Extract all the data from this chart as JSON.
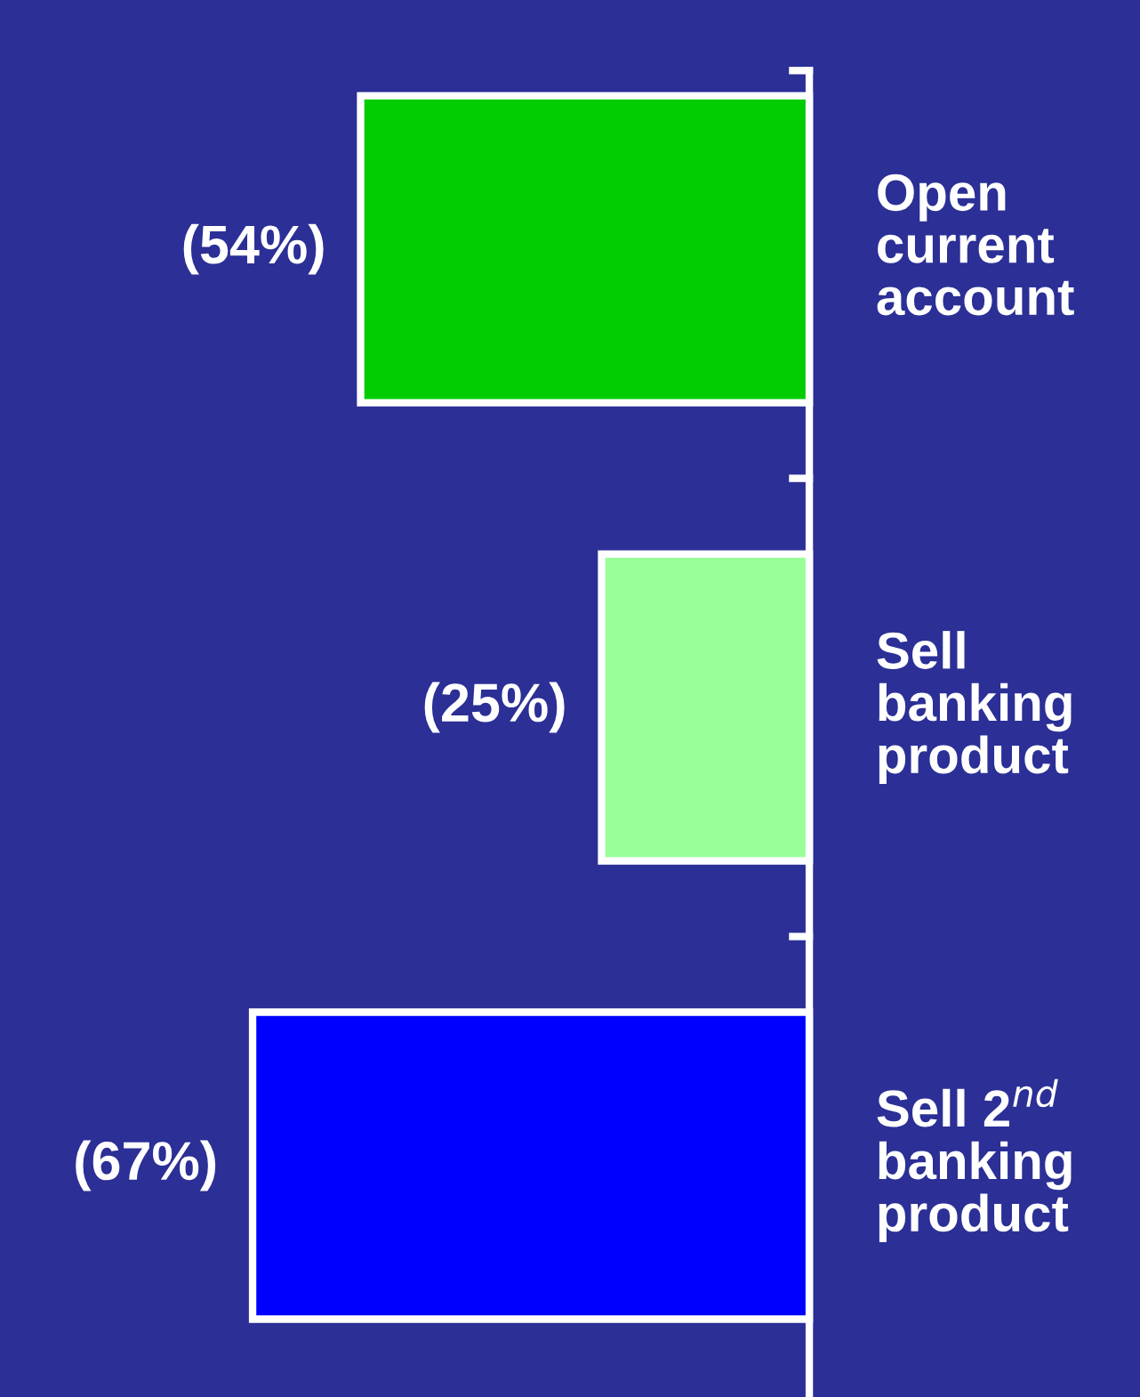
{
  "chart_data": {
    "type": "bar",
    "orientation": "horizontal",
    "categories": [
      "Open\ncurrent\naccount",
      "Sell\nbanking\nproduct",
      "Sell 2$^{nd}$\nbanking\nproduct"
    ],
    "values": [
      -54,
      -25,
      -67
    ],
    "colors": [
      "#00cc00",
      "#99ff99",
      "#0000ff"
    ],
    "value_labels": [
      "(54%)",
      "(25%)",
      "(67%)"
    ],
    "xlim": [
      -97.4,
      39.8
    ],
    "grid": false
  }
}
